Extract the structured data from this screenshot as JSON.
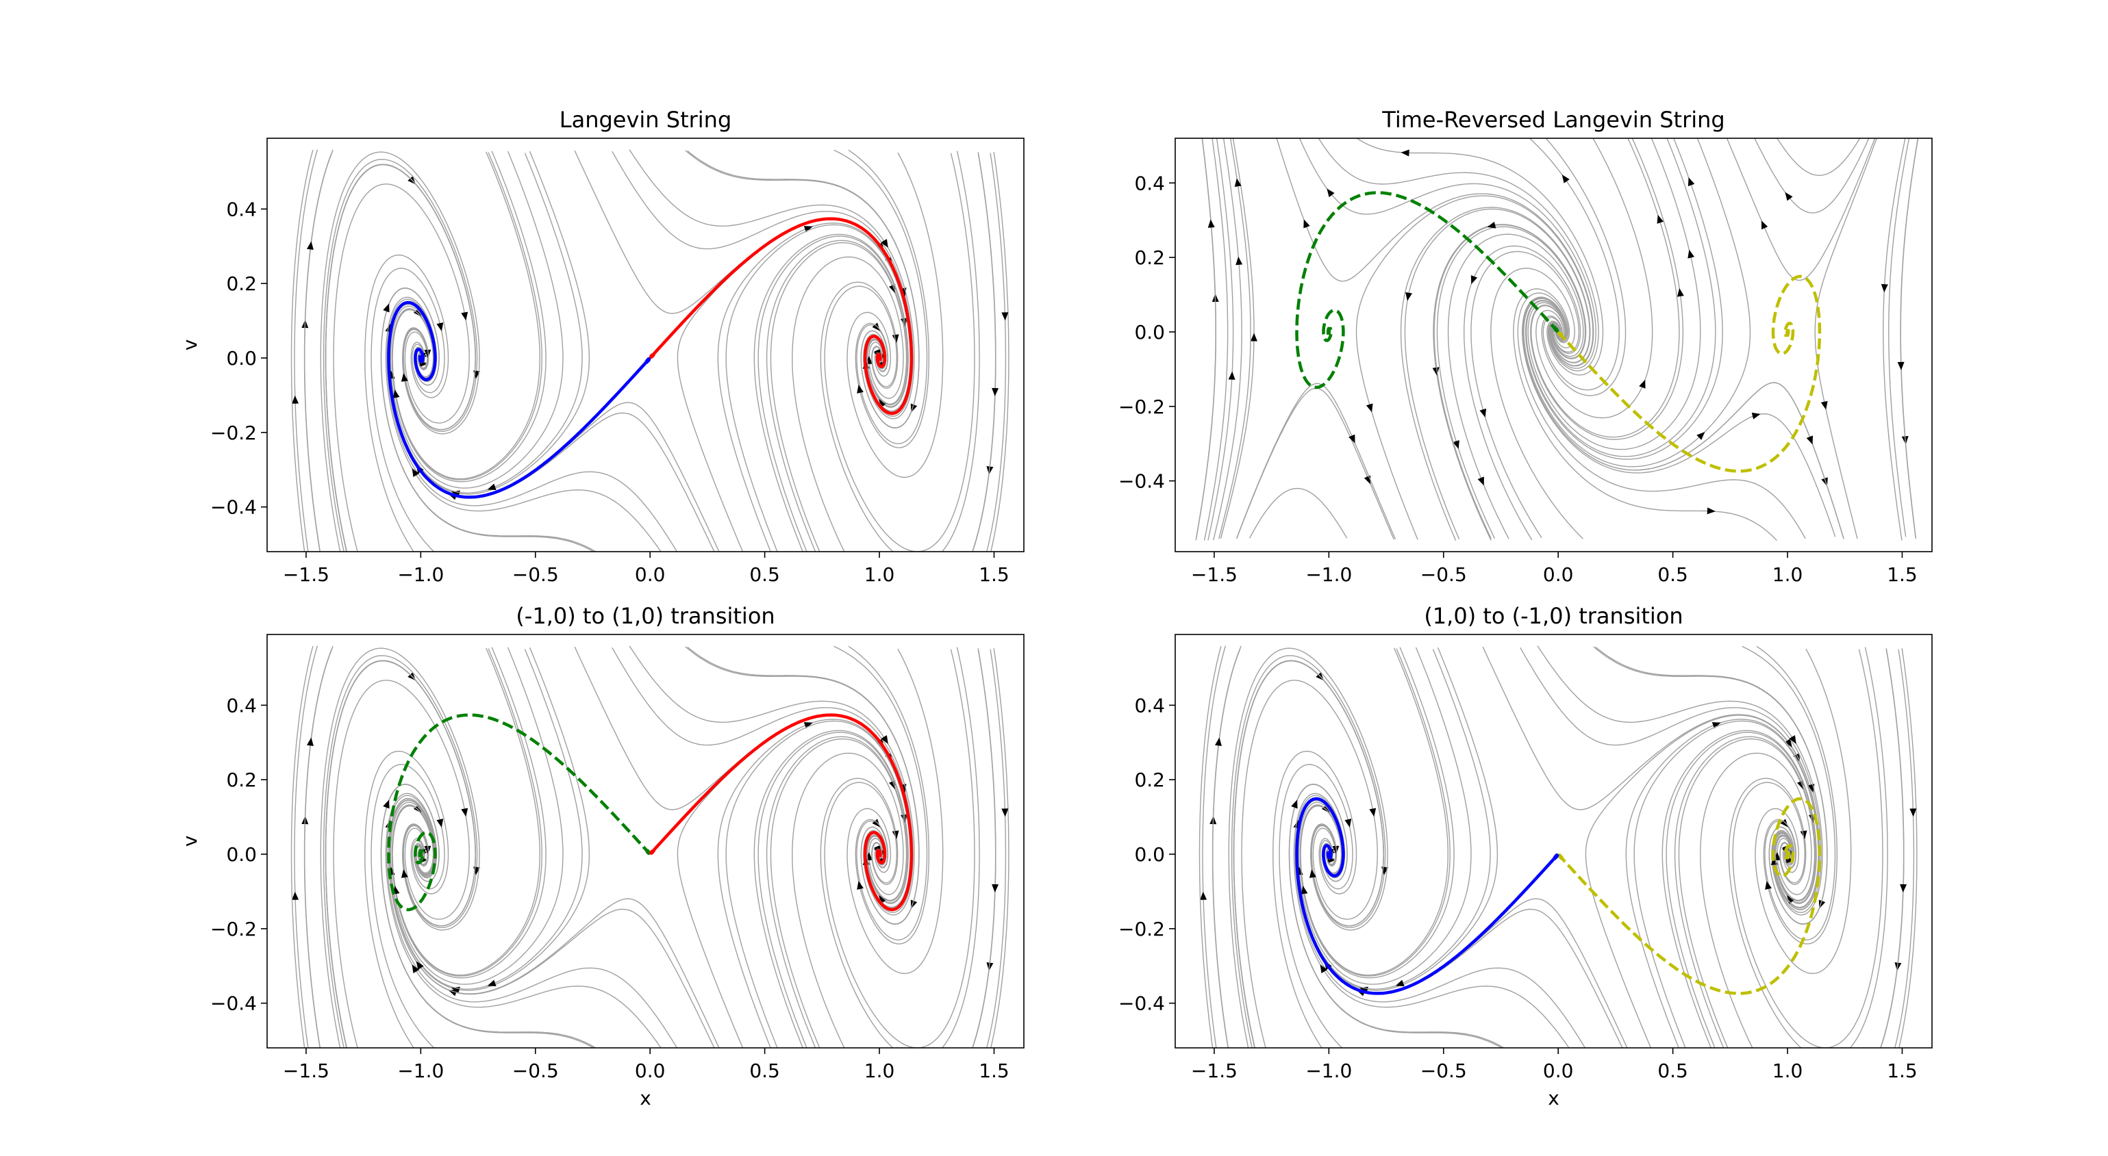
{
  "colors": {
    "background": "#ffffff",
    "streamline": "#a0a0a0",
    "arrow": "#000000",
    "blue": "#0000ff",
    "red": "#ff0000",
    "green": "#008000",
    "yellow": "#bfbf00"
  },
  "chart_data": [
    {
      "type": "line",
      "title": "Langevin String",
      "xlabel": "",
      "ylabel": "v",
      "xlim": [
        -1.67,
        1.63
      ],
      "ylim": [
        -0.52,
        0.59
      ],
      "xticks": [
        "−1.5",
        "−1.0",
        "−0.5",
        "0.0",
        "0.5",
        "1.0",
        "1.5"
      ],
      "yticks": [
        "−0.4",
        "−0.2",
        "0.0",
        "0.2",
        "0.4"
      ],
      "background": "streamlines of damped double-well field",
      "series": [
        {
          "name": "blue-solid",
          "color": "blue",
          "dashed": false,
          "kind": "path",
          "start": [
            0,
            0
          ],
          "end": [
            -1,
            0
          ]
        },
        {
          "name": "red-solid",
          "color": "red",
          "dashed": false,
          "kind": "path",
          "start": [
            0,
            0
          ],
          "end": [
            1,
            0
          ]
        }
      ]
    },
    {
      "type": "line",
      "title": "Time-Reversed Langevin String",
      "xlabel": "",
      "ylabel": "",
      "xlim": [
        -1.67,
        1.63
      ],
      "ylim": [
        -0.59,
        0.52
      ],
      "xticks": [
        "−1.5",
        "−1.0",
        "−0.5",
        "0.0",
        "0.5",
        "1.0",
        "1.5"
      ],
      "yticks": [
        "−0.4",
        "−0.2",
        "0.0",
        "0.2",
        "0.4"
      ],
      "background": "streamlines of time-reversed field",
      "series": [
        {
          "name": "green-dashed",
          "color": "green",
          "dashed": true,
          "kind": "path_reversed",
          "start": [
            -1,
            0
          ],
          "end": [
            0,
            0
          ]
        },
        {
          "name": "yellow-dashed",
          "color": "yellow",
          "dashed": true,
          "kind": "path_reversed",
          "start": [
            1,
            0
          ],
          "end": [
            0,
            0
          ]
        }
      ]
    },
    {
      "type": "line",
      "title": "(-1,0) to (1,0) transition",
      "xlabel": "x",
      "ylabel": "v",
      "xlim": [
        -1.67,
        1.63
      ],
      "ylim": [
        -0.52,
        0.59
      ],
      "xticks": [
        "−1.5",
        "−1.0",
        "−0.5",
        "0.0",
        "0.5",
        "1.0",
        "1.5"
      ],
      "yticks": [
        "−0.4",
        "−0.2",
        "0.0",
        "0.2",
        "0.4"
      ],
      "background": "streamlines of damped double-well field",
      "series": [
        {
          "name": "green-dashed",
          "color": "green",
          "dashed": true,
          "kind": "path_reversed_mirror",
          "start": [
            -1,
            0
          ],
          "end": [
            0,
            0
          ]
        },
        {
          "name": "red-solid",
          "color": "red",
          "dashed": false,
          "kind": "path",
          "start": [
            0,
            0
          ],
          "end": [
            1,
            0
          ]
        }
      ]
    },
    {
      "type": "line",
      "title": "(1,0) to (-1,0) transition",
      "xlabel": "x",
      "ylabel": "",
      "xlim": [
        -1.67,
        1.63
      ],
      "ylim": [
        -0.52,
        0.59
      ],
      "xticks": [
        "−1.5",
        "−1.0",
        "−0.5",
        "0.0",
        "0.5",
        "1.0",
        "1.5"
      ],
      "yticks": [
        "−0.4",
        "−0.2",
        "0.0",
        "0.2",
        "0.4"
      ],
      "background": "streamlines of damped double-well field",
      "series": [
        {
          "name": "yellow-dashed",
          "color": "yellow",
          "dashed": true,
          "kind": "path_reversed_mirror",
          "start": [
            1,
            0
          ],
          "end": [
            0,
            0
          ]
        },
        {
          "name": "blue-solid",
          "color": "blue",
          "dashed": false,
          "kind": "path",
          "start": [
            0,
            0
          ],
          "end": [
            -1,
            0
          ]
        }
      ]
    }
  ]
}
